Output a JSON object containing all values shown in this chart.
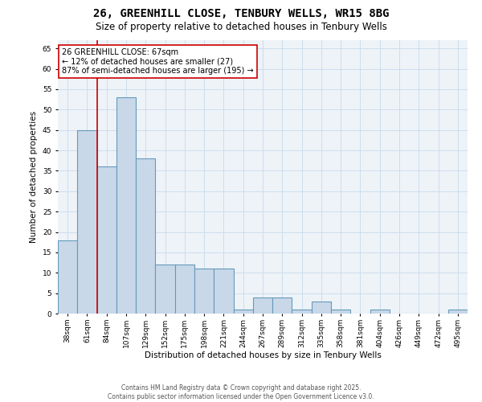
{
  "title_line1": "26, GREENHILL CLOSE, TENBURY WELLS, WR15 8BG",
  "title_line2": "Size of property relative to detached houses in Tenbury Wells",
  "xlabel": "Distribution of detached houses by size in Tenbury Wells",
  "ylabel": "Number of detached properties",
  "categories": [
    "38sqm",
    "61sqm",
    "84sqm",
    "107sqm",
    "129sqm",
    "152sqm",
    "175sqm",
    "198sqm",
    "221sqm",
    "244sqm",
    "267sqm",
    "289sqm",
    "312sqm",
    "335sqm",
    "358sqm",
    "381sqm",
    "404sqm",
    "426sqm",
    "449sqm",
    "472sqm",
    "495sqm"
  ],
  "values": [
    18,
    45,
    36,
    53,
    38,
    12,
    12,
    11,
    11,
    1,
    4,
    4,
    1,
    3,
    1,
    0,
    1,
    0,
    0,
    0,
    1
  ],
  "bar_color": "#c8d8e8",
  "bar_edge_color": "#6699bb",
  "bar_edge_width": 0.8,
  "vline_x": 1.5,
  "vline_color": "#cc0000",
  "annotation_text": "26 GREENHILL CLOSE: 67sqm\n← 12% of detached houses are smaller (27)\n87% of semi-detached houses are larger (195) →",
  "annotation_box_color": "#cc0000",
  "annotation_text_color": "black",
  "ylim": [
    0,
    67
  ],
  "yticks": [
    0,
    5,
    10,
    15,
    20,
    25,
    30,
    35,
    40,
    45,
    50,
    55,
    60,
    65
  ],
  "grid_color": "#ccddee",
  "background_color": "#eef3f8",
  "footer_text": "Contains HM Land Registry data © Crown copyright and database right 2025.\nContains public sector information licensed under the Open Government Licence v3.0.",
  "title_fontsize": 10,
  "subtitle_fontsize": 8.5,
  "axis_label_fontsize": 7.5,
  "tick_fontsize": 6.5,
  "annotation_fontsize": 7,
  "footer_fontsize": 5.5
}
